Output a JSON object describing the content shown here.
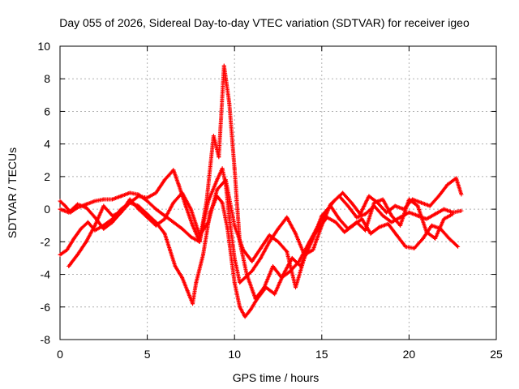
{
  "chart_data": {
    "type": "scatter",
    "title": "Day 055 of 2026, Sidereal Day-to-day VTEC variation (SDTVAR) for receiver igeo",
    "xlabel": "GPS time / hours",
    "ylabel": "SDTVAR / TECUs",
    "xlim": [
      0,
      25
    ],
    "ylim": [
      -8,
      10
    ],
    "x_ticks": [
      "0",
      "5",
      "10",
      "15",
      "20",
      "25"
    ],
    "y_ticks": [
      "-8",
      "-6",
      "-4",
      "-2",
      "0",
      "2",
      "4",
      "6",
      "8",
      "10"
    ],
    "grid": true,
    "marker": "+",
    "series": [
      {
        "name": "SDTVAR",
        "color": "#ff0000",
        "tracks": [
          {
            "x": [
              0.0,
              0.3,
              0.6,
              1.0,
              1.5,
              2.0,
              2.5,
              3.0,
              3.5,
              4.0,
              4.5,
              5.0,
              5.5,
              6.0,
              6.5,
              7.0,
              7.5,
              8.0,
              8.5,
              9.0,
              9.3,
              9.5,
              9.7,
              10.0,
              10.3,
              10.6,
              11.0,
              11.5,
              12.0,
              12.5,
              13.0,
              13.5,
              14.0,
              14.5,
              15.0,
              15.5,
              16.0,
              16.5,
              17.0,
              17.5,
              18.0,
              18.5,
              19.0,
              19.5,
              20.0,
              20.5,
              21.0,
              21.5,
              22.0,
              22.5,
              23.0
            ],
            "y": [
              0.5,
              0.2,
              -0.2,
              0.1,
              0.3,
              0.5,
              0.6,
              0.6,
              0.8,
              1.0,
              0.9,
              0.5,
              0.0,
              -0.4,
              -0.8,
              -1.2,
              -1.7,
              -2.0,
              0.5,
              1.8,
              2.5,
              1.5,
              -0.5,
              -3.0,
              -4.5,
              -4.2,
              -3.8,
              -3.0,
              -2.0,
              -1.2,
              -0.5,
              -1.5,
              -2.8,
              -2.5,
              -1.0,
              0.3,
              0.8,
              0.2,
              -0.5,
              -0.3,
              0.2,
              -0.4,
              -0.8,
              -0.5,
              -0.2,
              -0.4,
              -0.6,
              -0.3,
              0.0,
              -0.2,
              -0.1
            ]
          },
          {
            "x": [
              0.0,
              0.4,
              0.8,
              1.2,
              1.6,
              2.0,
              2.5,
              3.0,
              3.5,
              4.0,
              4.5,
              5.0,
              5.5,
              6.0,
              6.3,
              6.6,
              7.0,
              7.3,
              7.6,
              7.8,
              8.2,
              8.6,
              9.0,
              9.3,
              9.6,
              10.0,
              10.3,
              10.6,
              10.9,
              11.3,
              11.8,
              12.3,
              12.8,
              13.3,
              13.8,
              14.3,
              14.8,
              15.3,
              15.8,
              16.3,
              16.8,
              17.3,
              17.8,
              18.3,
              18.8,
              19.3,
              19.8,
              20.3,
              20.8,
              21.3,
              21.8,
              22.3,
              22.8
            ],
            "y": [
              -2.8,
              -2.5,
              -1.8,
              -1.2,
              -0.8,
              -1.3,
              -1.0,
              -0.6,
              0.0,
              0.4,
              0.2,
              -0.3,
              -0.8,
              -1.5,
              -2.5,
              -3.5,
              -4.2,
              -5.0,
              -5.8,
              -4.5,
              -2.8,
              -0.2,
              0.8,
              0.4,
              -1.2,
              -4.5,
              -6.0,
              -6.6,
              -6.2,
              -5.5,
              -4.8,
              -5.2,
              -4.0,
              -3.0,
              -3.5,
              -2.0,
              -1.2,
              -0.5,
              -0.8,
              -1.4,
              -1.0,
              -0.6,
              -1.5,
              -1.1,
              -0.9,
              -1.6,
              -2.3,
              -2.4,
              -1.8,
              -1.0,
              -1.2,
              -1.8,
              -2.3
            ]
          },
          {
            "x": [
              0.0,
              0.5,
              1.0,
              1.5,
              2.0,
              2.5,
              3.0,
              3.5,
              4.0,
              4.5,
              5.0,
              5.5,
              6.0,
              6.5,
              6.8,
              7.2,
              7.6,
              8.0,
              8.4,
              8.8,
              9.1,
              9.4,
              9.7,
              10.0,
              10.3,
              10.7,
              11.2,
              11.7,
              12.2,
              12.7,
              13.2,
              13.7,
              14.2,
              14.7,
              15.2,
              15.7,
              16.2,
              16.7,
              17.2,
              17.7,
              18.2,
              18.7,
              19.2,
              19.7,
              20.2,
              20.7,
              21.2,
              21.7,
              22.2,
              22.7,
              23.0
            ],
            "y": [
              0.0,
              -0.2,
              0.3,
              0.1,
              -0.5,
              -1.2,
              -0.8,
              -0.2,
              0.4,
              0.8,
              0.7,
              1.0,
              1.8,
              2.4,
              1.5,
              0.2,
              -1.0,
              -2.0,
              0.5,
              4.5,
              3.2,
              8.8,
              6.5,
              2.5,
              -2.0,
              -4.0,
              -5.5,
              -4.8,
              -3.5,
              -4.2,
              -3.8,
              -3.2,
              -2.2,
              -1.2,
              -0.2,
              0.5,
              1.0,
              0.4,
              -0.3,
              0.8,
              0.4,
              -0.2,
              0.2,
              0.0,
              0.6,
              0.4,
              0.2,
              0.8,
              1.5,
              1.9,
              0.9
            ]
          },
          {
            "x": [
              0.5,
              1.0,
              1.5,
              2.0,
              2.5,
              3.0,
              3.5,
              4.0,
              4.5,
              5.0,
              5.5,
              6.0,
              6.5,
              7.0,
              7.5,
              8.0,
              8.5,
              9.0,
              9.5,
              10.0,
              10.5,
              11.0,
              11.5,
              12.0,
              12.5,
              13.0,
              13.5,
              14.0,
              14.5,
              15.0,
              15.5,
              16.0,
              16.5,
              17.0,
              17.5,
              18.0,
              18.5,
              19.0,
              19.5,
              20.0,
              20.5,
              21.0,
              21.5,
              22.0,
              22.5
            ],
            "y": [
              -3.5,
              -2.8,
              -2.0,
              -1.0,
              0.2,
              -0.4,
              -0.2,
              0.6,
              0.0,
              -0.5,
              -1.0,
              -0.6,
              0.4,
              1.0,
              0.0,
              -1.6,
              -0.8,
              1.2,
              1.8,
              -1.0,
              -2.5,
              -3.2,
              -2.4,
              -1.6,
              -2.0,
              -2.6,
              -4.8,
              -3.0,
              -1.8,
              -0.4,
              0.2,
              -0.6,
              -1.2,
              -0.8,
              -1.3,
              0.4,
              0.6,
              -0.4,
              -1.0,
              0.6,
              0.2,
              -1.4,
              -1.8,
              -0.6,
              -0.3
            ]
          }
        ]
      }
    ]
  }
}
